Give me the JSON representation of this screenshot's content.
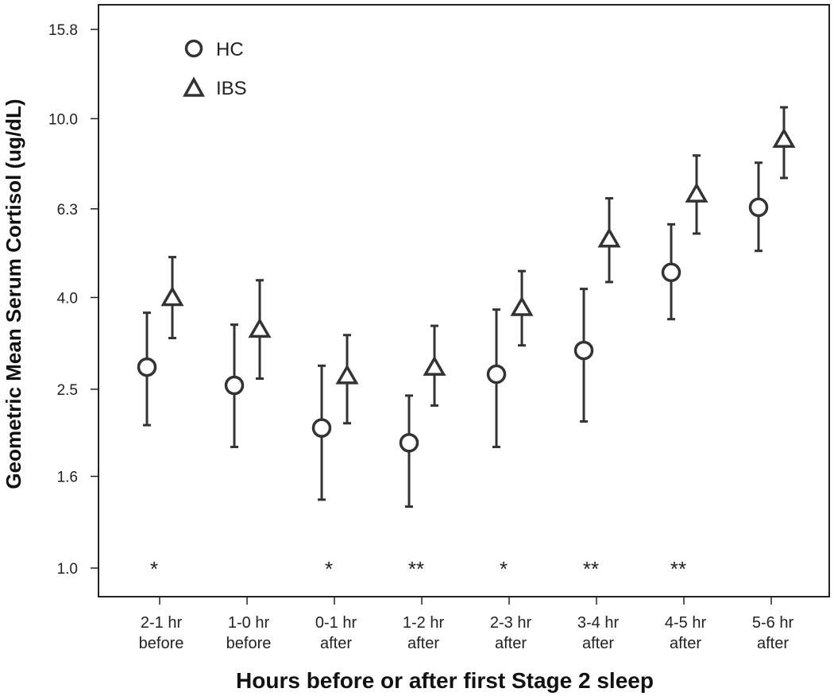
{
  "chart_data": {
    "type": "scatter",
    "ylabel": "Geometric Mean Serum Cortisol (ug/dL)",
    "xlabel": "Hours before or after first Stage 2 sleep",
    "y_scale": "log",
    "ylim": [
      1.0,
      15.8
    ],
    "y_ticks": [
      "1.0",
      "1.6",
      "2.5",
      "4.0",
      "6.3",
      "10.0",
      "15.8"
    ],
    "categories": [
      [
        "2-1 hr",
        "before"
      ],
      [
        "1-0 hr",
        "before"
      ],
      [
        "0-1 hr",
        "after"
      ],
      [
        "1-2 hr",
        "after"
      ],
      [
        "2-3 hr",
        "after"
      ],
      [
        "3-4 hr",
        "after"
      ],
      [
        "4-5 hr",
        "after"
      ],
      [
        "5-6 hr",
        "after"
      ]
    ],
    "series": [
      {
        "name": "HC",
        "marker": "circle",
        "values": [
          2.8,
          2.55,
          2.05,
          1.9,
          2.7,
          3.05,
          4.55,
          6.35
        ],
        "lower": [
          2.08,
          1.86,
          1.42,
          1.37,
          1.86,
          2.12,
          3.58,
          5.08
        ],
        "upper": [
          3.7,
          3.48,
          2.82,
          2.42,
          3.76,
          4.18,
          5.82,
          7.98
        ]
      },
      {
        "name": "IBS",
        "marker": "triangle",
        "values": [
          4.0,
          3.4,
          2.68,
          2.8,
          3.8,
          5.4,
          6.8,
          9.0
        ],
        "lower": [
          3.25,
          2.64,
          2.1,
          2.3,
          3.13,
          4.33,
          5.55,
          7.38
        ],
        "upper": [
          4.92,
          4.37,
          3.3,
          3.46,
          4.58,
          6.65,
          8.28,
          10.6
        ]
      }
    ],
    "significance": [
      "*",
      "",
      "*",
      "**",
      "*",
      "**",
      "**",
      ""
    ],
    "legend": {
      "position": "top-left"
    },
    "grid": false,
    "colors": {
      "marker": "#333333",
      "axis": "#222222"
    }
  }
}
